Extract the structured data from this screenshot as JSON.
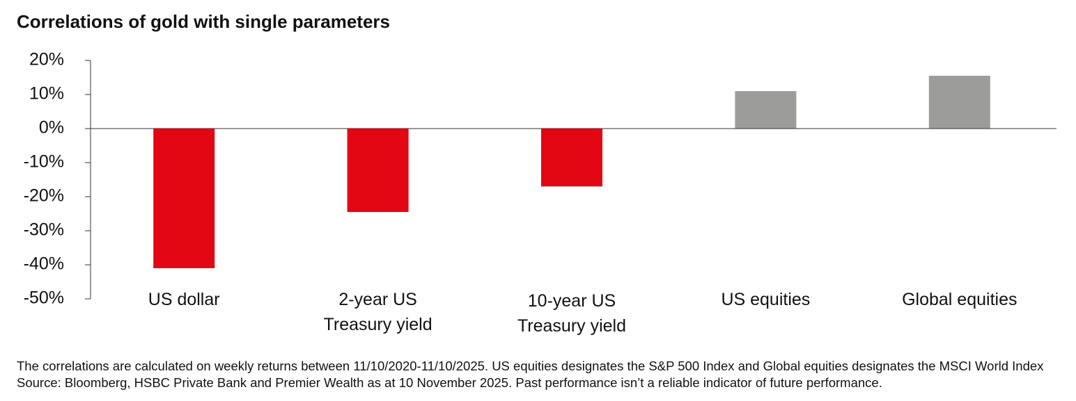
{
  "chart_data": {
    "type": "bar",
    "title": "Correlations of gold with single parameters",
    "categories": [
      "US dollar",
      "2-year US\nTreasury yield",
      "10-year US\nTreasury yield",
      "US equities",
      "Global equities"
    ],
    "values": [
      -41,
      -24.5,
      -17,
      11,
      15.5
    ],
    "colors": [
      "#e30613",
      "#e30613",
      "#e30613",
      "#9c9c9b",
      "#9c9c9b"
    ],
    "ylim": [
      -50,
      20
    ],
    "yticks": [
      {
        "value": 20,
        "label": "20%"
      },
      {
        "value": 10,
        "label": "10%"
      },
      {
        "value": 0,
        "label": "0%"
      },
      {
        "value": -10,
        "label": "-10%"
      },
      {
        "value": -20,
        "label": "-20%"
      },
      {
        "value": -30,
        "label": "-30%"
      },
      {
        "value": -40,
        "label": "-40%"
      },
      {
        "value": -50,
        "label": "-50%"
      }
    ],
    "footnote": "The correlations are calculated on weekly returns between 11/10/2020-11/10/2025. US equities designates the S&P 500 Index and Global equities designates the MSCI World Index Source: Bloomberg, HSBC Private Bank and Premier Wealth as at 10 November 2025. Past performance isn’t a reliable indicator of future performance."
  }
}
